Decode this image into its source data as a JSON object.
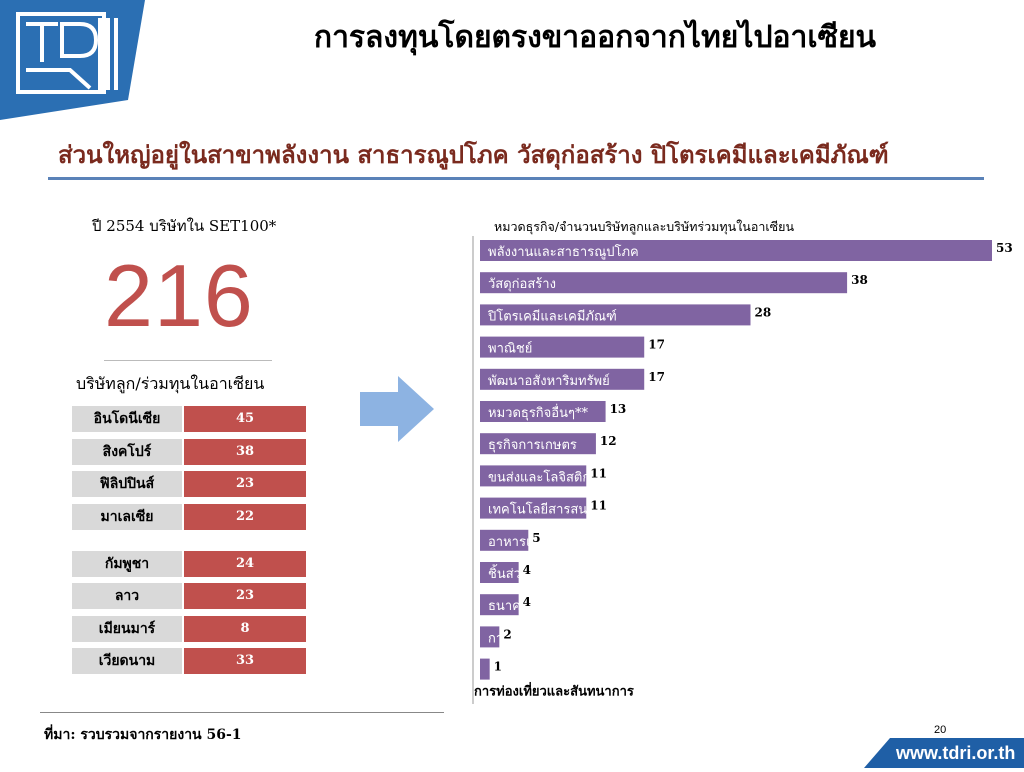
{
  "header": {
    "title": "การลงทุนโดยตรงขาออกจากไทยไปอาเซียน",
    "subtitle": "ส่วนใหญ่อยู่ในสาขาพลังงาน สาธารณูปโภค วัสดุก่อสร้าง ปิโตรเคมีและเคมีภัณฑ์"
  },
  "left": {
    "year_label": "ปี 2554 บริษัทใน SET100*",
    "big_number": "216",
    "asean_label": "บริษัทลูก/ร่วมทุนในอาเซียน",
    "countries": [
      {
        "name": "อินโดนีเซีย",
        "value": "45"
      },
      {
        "name": "สิงคโปร์",
        "value": "38"
      },
      {
        "name": "ฟิลิปปินส์",
        "value": "23"
      },
      {
        "name": "มาเลเซีย",
        "value": "22"
      },
      {
        "name": "กัมพูชา",
        "value": "24"
      },
      {
        "name": "ลาว",
        "value": "23"
      },
      {
        "name": "เมียนมาร์",
        "value": "8"
      },
      {
        "name": "เวียดนาม",
        "value": "33"
      }
    ]
  },
  "chart_data": {
    "type": "bar",
    "orientation": "horizontal",
    "title": "หมวดธุรกิจ/จำนวนบริษัทลูกและบริษัทร่วมทุนในอาเซียน",
    "categories": [
      "พลังงานและสาธารณูปโภค",
      "วัสดุก่อสร้าง",
      "ปิโตรเคมีและเคมีภัณฑ์",
      "พาณิชย์",
      "พัฒนาอสังหาริมทรัพย์",
      "หมวดธุรกิจอื่นๆ**",
      "ธุรกิจการเกษตร",
      "ขนส่งและโลจิสติกส์",
      "เทคโนโลยีสารสนเทศและการสื่อสาร",
      "อาหารและเครื่องดื่ม",
      "ชิ้นส่วนอิเล็กฯ",
      "ธนาคาร",
      "การแพทย์",
      "การท่องเที่ยวและสันทนาการ"
    ],
    "values": [
      53,
      38,
      28,
      17,
      17,
      13,
      12,
      11,
      11,
      5,
      4,
      4,
      2,
      1
    ],
    "bar_color": "#8064a2",
    "xlim": [
      0,
      53
    ],
    "grid": false,
    "legend": "none"
  },
  "footer": {
    "source": "ที่มา: รวบรวมจากรายงาน 56-1",
    "page_number": "20",
    "url": "www.tdri.or.th"
  },
  "colors": {
    "brand_blue": "#2b6fb3",
    "accent_red": "#c0504d",
    "subtitle_color": "#7a2a1e",
    "rule_blue": "#5a82b8"
  }
}
